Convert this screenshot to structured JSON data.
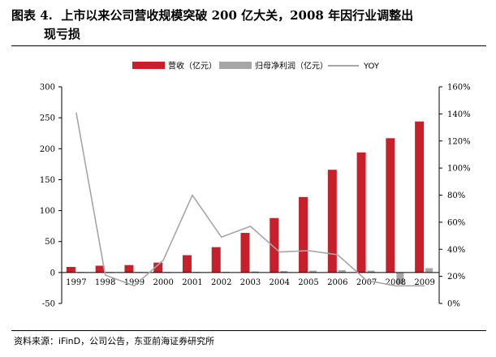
{
  "figure": {
    "label": "图表 4.",
    "title_line1": "上市以来公司营收规模突破 200 亿大关，2008 年因行业调整出",
    "title_line2": "现亏损",
    "source": "资料来源：iFinD，公司公告，东亚前海证券研究所"
  },
  "colors": {
    "revenue": "#c8202b",
    "net_profit": "#a6a6a6",
    "yoy": "#a6a6a6"
  },
  "chart_data": {
    "type": "bar",
    "categories": [
      "1997",
      "1998",
      "1999",
      "2000",
      "2001",
      "2002",
      "2003",
      "2004",
      "2005",
      "2006",
      "2007",
      "2008",
      "2009"
    ],
    "series": [
      {
        "name": "营收（亿元）",
        "type": "bar",
        "axis": "left",
        "values": [
          9,
          11,
          12,
          16,
          28,
          41,
          64,
          88,
          122,
          166,
          194,
          217,
          244
        ]
      },
      {
        "name": "归母净利润（亿元）",
        "type": "bar",
        "axis": "left",
        "values": [
          0.8,
          0.8,
          0.8,
          0.9,
          1.0,
          1.2,
          1.8,
          2.5,
          3.0,
          3.8,
          3.0,
          -19,
          7
        ]
      },
      {
        "name": "YOY",
        "type": "line",
        "axis": "right",
        "values": [
          141,
          21,
          13,
          32,
          80,
          49,
          57,
          38,
          39,
          36,
          17,
          13,
          13
        ]
      }
    ],
    "left_axis": {
      "min": -50,
      "max": 300,
      "step": 50,
      "ticks": [
        "300",
        "250",
        "200",
        "150",
        "100",
        "50",
        "0",
        "-50"
      ]
    },
    "right_axis": {
      "min": 0,
      "max": 160,
      "step": 20,
      "unit": "%",
      "ticks": [
        "160%",
        "140%",
        "120%",
        "100%",
        "80%",
        "60%",
        "40%",
        "20%",
        "0%"
      ]
    },
    "legend_position": "top-center",
    "grid": false
  }
}
